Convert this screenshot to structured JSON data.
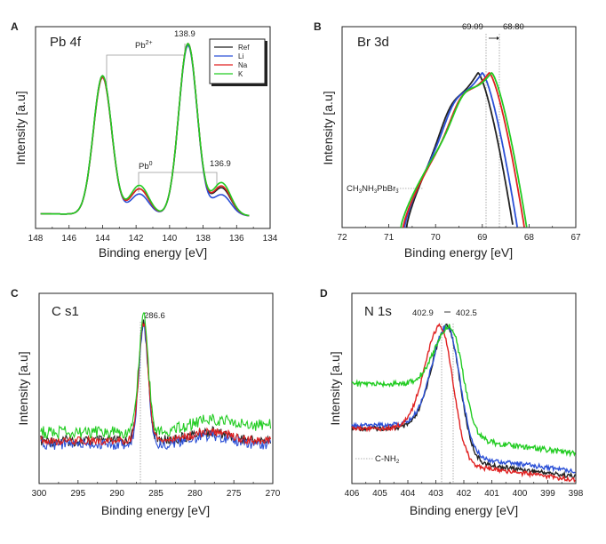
{
  "panels": {
    "A": {
      "letter": "A",
      "title": "Pb 4f",
      "xlabel": "Binding energy [eV]",
      "ylabel": "Intensity [a.u]",
      "xlim": [
        148,
        134
      ],
      "xticks": [
        "148",
        "146",
        "144",
        "142",
        "140",
        "138",
        "136",
        "134"
      ],
      "annotations": {
        "pb2": "Pb",
        "pb2_sup": "2+",
        "pb0": "Pb",
        "pb0_sup": "0",
        "peak1": "138.9",
        "peak2": "136.9"
      },
      "legend": [
        "Ref",
        "Li",
        "Na",
        "K"
      ]
    },
    "B": {
      "letter": "B",
      "title": "Br 3d",
      "xlabel": "Binding energy [eV]",
      "ylabel": "Intensity [a.u]",
      "xlim": [
        72,
        67
      ],
      "xticks": [
        "72",
        "71",
        "70",
        "69",
        "68",
        "67"
      ],
      "annotations": {
        "v1": "69.09",
        "v2": "68.80",
        "compound": "CH",
        "compound_sub1": "3",
        "compound_mid": "NH",
        "compound_sub2": "3",
        "compound_end": "PbBr",
        "compound_sub3": "3"
      }
    },
    "C": {
      "letter": "C",
      "title": "C s1",
      "xlabel": "Binding energy [eV]",
      "ylabel": "Intensity [a.u]",
      "xlim": [
        300,
        270
      ],
      "xticks": [
        "300",
        "295",
        "290",
        "285",
        "280",
        "275",
        "270"
      ],
      "annotations": {
        "peak": "286.6"
      }
    },
    "D": {
      "letter": "D",
      "title": "N 1s",
      "xlabel": "Binding energy [eV]",
      "ylabel": "Intensity [a.u]",
      "xlim": [
        406,
        398
      ],
      "xticks": [
        "406",
        "405",
        "404",
        "403",
        "402",
        "401",
        "400",
        "399",
        "398"
      ],
      "annotations": {
        "v1": "402.9",
        "v2": "402.5",
        "group": "C-NH",
        "group_sub": "2"
      }
    }
  },
  "chart_data": [
    {
      "type": "line",
      "panel": "A",
      "title": "Pb 4f",
      "xlabel": "Binding energy [eV]",
      "ylabel": "Intensity [a.u]",
      "xlim": [
        148,
        134
      ],
      "x_reversed": true,
      "legend_position": "top-right",
      "peaks": [
        144.0,
        141.8,
        138.9,
        136.9
      ],
      "series": [
        {
          "name": "Ref",
          "color": "#222222",
          "peak_heights": [
            0.8,
            0.15,
            0.99,
            0.16
          ]
        },
        {
          "name": "Li",
          "color": "#2a4fd6",
          "peak_heights": [
            0.79,
            0.12,
            0.98,
            0.12
          ]
        },
        {
          "name": "Na",
          "color": "#e02020",
          "peak_heights": [
            0.79,
            0.15,
            0.99,
            0.17
          ]
        },
        {
          "name": "K",
          "color": "#22cc22",
          "peak_heights": [
            0.8,
            0.17,
            0.99,
            0.19
          ]
        }
      ]
    },
    {
      "type": "line",
      "panel": "B",
      "title": "Br 3d",
      "xlabel": "Binding energy [eV]",
      "ylabel": "Intensity [a.u]",
      "xlim": [
        72,
        67
      ],
      "x_reversed": true,
      "peak_positions": {
        "Ref": 69.09,
        "Li": 69.0,
        "Na": 68.85,
        "K": 68.8
      },
      "series": [
        {
          "name": "Ref",
          "color": "#222222",
          "peak_x": 69.09
        },
        {
          "name": "Li",
          "color": "#2a4fd6",
          "peak_x": 69.0
        },
        {
          "name": "Na",
          "color": "#e02020",
          "peak_x": 68.85
        },
        {
          "name": "K",
          "color": "#22cc22",
          "peak_x": 68.8
        }
      ]
    },
    {
      "type": "line",
      "panel": "C",
      "title": "C s1",
      "xlabel": "Binding energy [eV]",
      "ylabel": "Intensity [a.u]",
      "xlim": [
        300,
        270
      ],
      "x_reversed": true,
      "peak_x": 286.6,
      "series": [
        {
          "name": "Ref",
          "color": "#222222"
        },
        {
          "name": "Li",
          "color": "#2a4fd6"
        },
        {
          "name": "Na",
          "color": "#e02020"
        },
        {
          "name": "K",
          "color": "#22cc22"
        }
      ]
    },
    {
      "type": "line",
      "panel": "D",
      "title": "N 1s",
      "xlabel": "Binding energy [eV]",
      "ylabel": "Intensity [a.u]",
      "xlim": [
        406,
        398
      ],
      "x_reversed": true,
      "peak_markers": [
        402.9,
        402.5
      ],
      "series": [
        {
          "name": "Ref",
          "color": "#222222",
          "peak_x": 402.6
        },
        {
          "name": "Li",
          "color": "#2a4fd6",
          "peak_x": 402.6
        },
        {
          "name": "Na",
          "color": "#e02020",
          "peak_x": 402.85
        },
        {
          "name": "K",
          "color": "#22cc22",
          "peak_x": 402.5
        }
      ]
    }
  ]
}
